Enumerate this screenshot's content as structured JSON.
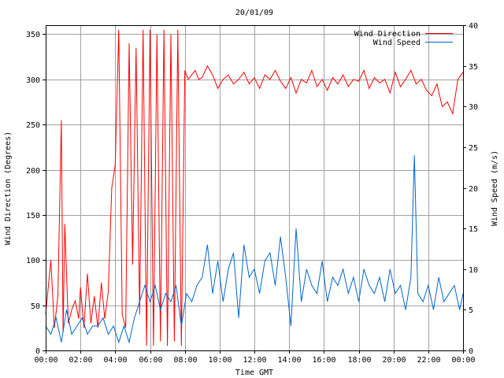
{
  "chart_data": {
    "type": "line",
    "title": "20/01/09",
    "xlabel": "Time GMT",
    "ylabel_left": "Wind Direction (Degrees)",
    "ylabel_right": "Wind Speed (m/s)",
    "x_ticks": [
      "00:00",
      "02:00",
      "04:00",
      "06:00",
      "08:00",
      "10:00",
      "12:00",
      "14:00",
      "16:00",
      "18:00",
      "20:00",
      "22:00",
      "00:00"
    ],
    "x_range_hours": [
      0,
      24
    ],
    "y_left_range": [
      0,
      360
    ],
    "y_left_ticks": [
      0,
      50,
      100,
      150,
      200,
      250,
      300,
      350
    ],
    "y_right_range": [
      0,
      40
    ],
    "y_right_ticks": [
      0,
      5,
      10,
      15,
      20,
      25,
      30,
      35,
      40
    ],
    "grid": true,
    "legend_position": "top-right",
    "colors": {
      "direction": "#ff0000",
      "speed": "#0066cc",
      "grid": "#a0a0a0"
    },
    "series": [
      {
        "name": "Wind Direction",
        "axis": "left",
        "unit": "Degrees",
        "x_hours": [
          0,
          0.3,
          0.5,
          0.7,
          0.9,
          1.0,
          1.1,
          1.3,
          1.5,
          1.7,
          1.9,
          2.0,
          2.2,
          2.4,
          2.6,
          2.8,
          3.0,
          3.2,
          3.4,
          3.6,
          3.8,
          4.0,
          4.2,
          4.4,
          4.6,
          4.8,
          5.0,
          5.2,
          5.4,
          5.6,
          5.8,
          6.0,
          6.2,
          6.4,
          6.6,
          6.8,
          7.0,
          7.2,
          7.4,
          7.6,
          7.8,
          8.0,
          8.2,
          8.4,
          8.6,
          8.8,
          9.0,
          9.3,
          9.6,
          9.9,
          10.2,
          10.5,
          10.8,
          11.1,
          11.4,
          11.7,
          12.0,
          12.3,
          12.6,
          12.9,
          13.2,
          13.5,
          13.8,
          14.1,
          14.4,
          14.7,
          15.0,
          15.3,
          15.6,
          15.9,
          16.2,
          16.5,
          16.8,
          17.1,
          17.4,
          17.7,
          18.0,
          18.3,
          18.6,
          18.9,
          19.2,
          19.5,
          19.8,
          20.1,
          20.4,
          20.7,
          21.0,
          21.3,
          21.6,
          21.9,
          22.2,
          22.5,
          22.8,
          23.1,
          23.4,
          23.7,
          24.0
        ],
        "values": [
          40,
          100,
          25,
          60,
          255,
          20,
          140,
          30,
          45,
          55,
          35,
          70,
          25,
          85,
          30,
          60,
          25,
          75,
          35,
          65,
          180,
          205,
          355,
          40,
          25,
          340,
          95,
          335,
          40,
          355,
          5,
          355,
          5,
          350,
          10,
          355,
          5,
          350,
          10,
          355,
          5,
          310,
          300,
          305,
          310,
          300,
          302,
          315,
          305,
          290,
          300,
          305,
          295,
          300,
          308,
          295,
          302,
          290,
          305,
          300,
          310,
          298,
          290,
          302,
          285,
          300,
          296,
          310,
          292,
          300,
          288,
          302,
          295,
          305,
          292,
          300,
          298,
          310,
          290,
          302,
          296,
          300,
          285,
          308,
          292,
          300,
          310,
          295,
          300,
          288,
          282,
          295,
          270,
          275,
          262,
          300,
          308
        ]
      },
      {
        "name": "Wind Speed",
        "axis": "right",
        "unit": "m/s",
        "x_hours": [
          0,
          0.3,
          0.6,
          0.9,
          1.2,
          1.5,
          1.8,
          2.1,
          2.4,
          2.7,
          3.0,
          3.3,
          3.6,
          3.9,
          4.2,
          4.5,
          4.8,
          5.1,
          5.4,
          5.7,
          6.0,
          6.3,
          6.6,
          6.9,
          7.2,
          7.5,
          7.8,
          8.1,
          8.4,
          8.7,
          9.0,
          9.3,
          9.6,
          9.9,
          10.2,
          10.5,
          10.8,
          11.1,
          11.4,
          11.7,
          12.0,
          12.3,
          12.6,
          12.9,
          13.2,
          13.5,
          13.8,
          14.1,
          14.4,
          14.7,
          15.0,
          15.3,
          15.6,
          15.9,
          16.2,
          16.5,
          16.8,
          17.1,
          17.4,
          17.7,
          18.0,
          18.3,
          18.6,
          18.9,
          19.2,
          19.5,
          19.8,
          20.1,
          20.4,
          20.7,
          21.0,
          21.2,
          21.4,
          21.7,
          22.0,
          22.3,
          22.6,
          22.9,
          23.2,
          23.5,
          23.8,
          24.0
        ],
        "values": [
          3,
          2,
          4,
          1,
          5,
          2,
          3,
          4,
          2,
          3,
          3,
          4,
          2,
          3,
          1,
          3,
          1,
          4,
          6,
          8,
          6,
          8,
          5,
          7,
          6,
          8,
          3,
          7,
          6,
          8,
          9,
          13,
          7,
          11,
          6,
          10,
          12,
          4,
          13,
          9,
          10,
          7,
          11,
          12,
          8,
          14,
          9,
          3,
          15,
          6,
          10,
          8,
          7,
          11,
          6,
          9,
          8,
          10,
          7,
          9,
          6,
          10,
          8,
          7,
          9,
          6,
          10,
          7,
          8,
          5,
          9,
          24,
          7,
          6,
          8,
          5,
          9,
          6,
          7,
          8,
          5,
          7
        ]
      }
    ]
  }
}
